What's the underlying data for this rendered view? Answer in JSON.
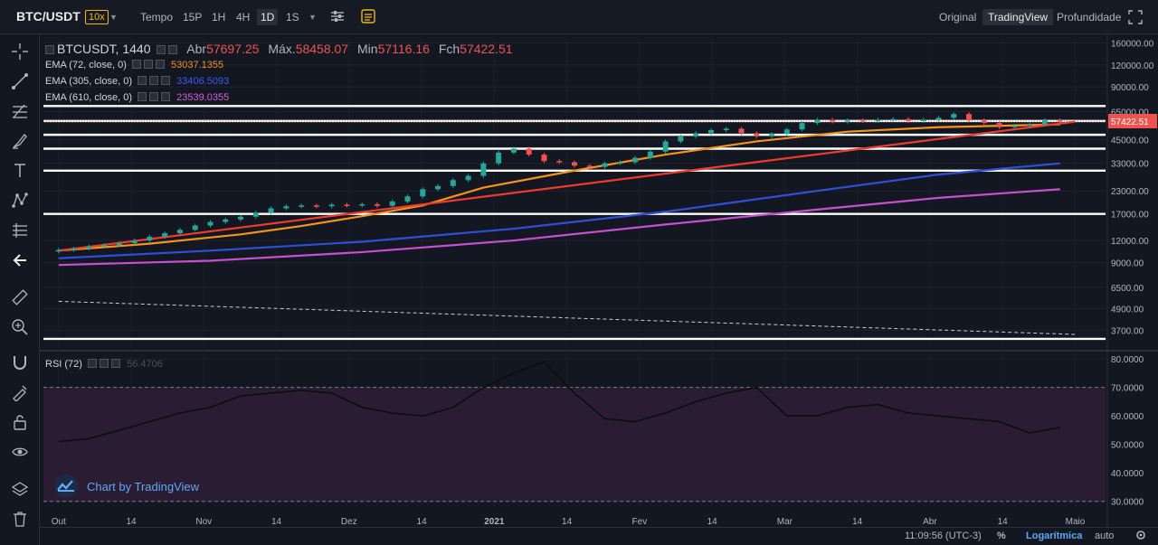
{
  "header": {
    "symbol": "BTC/USDT",
    "leverage": "10x",
    "intervals": [
      "Tempo",
      "15P",
      "1H",
      "4H",
      "1D",
      "1S"
    ],
    "active_interval": "1D",
    "views": [
      "Original",
      "TradingView",
      "Profundidade"
    ],
    "active_view": "TradingView"
  },
  "legend": {
    "symbol": "BTCUSDT, 1440",
    "open_label": "Abr",
    "open": "57697.25",
    "high_label": "Máx.",
    "high": "58458.07",
    "low_label": "Min",
    "low": "57116.16",
    "close_label": "Fch",
    "close": "57422.51",
    "ema1_label": "EMA (72, close, 0)",
    "ema1": "53037.1355",
    "ema2_label": "EMA (305, close, 0)",
    "ema2": "33406.5093",
    "ema3_label": "EMA (610, close, 0)",
    "ema3": "23539.0355",
    "rsi_label": "RSI (72)",
    "rsi": "56.4706"
  },
  "colors": {
    "bg": "#131722",
    "up": "#26a69a",
    "down": "#ef5350",
    "ema1": "#f7931a",
    "ema2": "#2f4fd8",
    "ema3": "#c84fd0",
    "trendline": "#ef3a2e",
    "rsi_band": "#2a1d33",
    "price_badge": "#ef5350"
  },
  "chart_data": [
    {
      "type": "line",
      "title": "BTCUSDT, 1440",
      "scale": "log",
      "ylim": [
        3000,
        175000
      ],
      "ytick_labels": [
        "160000.00",
        "120000.00",
        "90000.00",
        "65000.00",
        "45000.00",
        "33000.00",
        "23000.00",
        "17000.00",
        "12000.00",
        "9000.00",
        "6500.00",
        "4900.00",
        "3700.00"
      ],
      "ytick_values": [
        160000,
        120000,
        90000,
        65000,
        45000,
        33000,
        23000,
        17000,
        12000,
        9000,
        6500,
        4900,
        3700
      ],
      "xtick_labels": [
        "Out",
        "14",
        "Nov",
        "14",
        "Dez",
        "14",
        "2021",
        "14",
        "Fev",
        "14",
        "Mar",
        "14",
        "Abr",
        "14",
        "Maio"
      ],
      "last_price": "57422.51",
      "horizontal_levels": [
        70000,
        57500,
        48000,
        40000,
        30000,
        17000,
        3300
      ],
      "series": [
        {
          "name": "EMA (72, close, 0)",
          "color_key": "ema1",
          "x": [
            0,
            3,
            6,
            8,
            10,
            12,
            14,
            17,
            20,
            23,
            26,
            29,
            33
          ],
          "values": [
            10500,
            11500,
            13000,
            14500,
            16500,
            19000,
            24000,
            30000,
            37000,
            44000,
            50000,
            53000,
            55000
          ]
        },
        {
          "name": "EMA (305, close, 0)",
          "color_key": "ema2",
          "x": [
            0,
            5,
            10,
            15,
            20,
            25,
            29,
            33
          ],
          "values": [
            9500,
            10500,
            11800,
            14000,
            17500,
            23000,
            28500,
            33000
          ]
        },
        {
          "name": "EMA (610, close, 0)",
          "color_key": "ema3",
          "x": [
            0,
            5,
            10,
            15,
            20,
            25,
            29,
            33
          ],
          "values": [
            8700,
            9200,
            10300,
            12000,
            14800,
            18000,
            21000,
            23500
          ]
        },
        {
          "name": "",
          "color_key": "trendline",
          "x": [
            0,
            33.5
          ],
          "values": [
            10500,
            57000
          ]
        },
        {
          "name": "",
          "color_key": "dashed",
          "x": [
            0,
            33.5
          ],
          "values": [
            5400,
            3500
          ]
        }
      ],
      "candles": {
        "x": [
          0,
          0.5,
          1,
          1.5,
          2,
          2.5,
          3,
          3.5,
          4,
          4.5,
          5,
          5.5,
          6,
          6.5,
          7,
          7.5,
          8,
          8.5,
          9,
          9.5,
          10,
          10.5,
          11,
          11.5,
          12,
          12.5,
          13,
          13.5,
          14,
          14.5,
          15,
          15.5,
          16,
          16.5,
          17,
          17.5,
          18,
          18.5,
          19,
          19.5,
          20,
          20.5,
          21,
          21.5,
          22,
          22.5,
          23,
          23.5,
          24,
          24.5,
          25,
          25.5,
          26,
          26.5,
          27,
          27.5,
          28,
          28.5,
          29,
          29.5,
          30,
          30.5,
          31,
          31.5,
          32,
          32.5,
          33
        ],
        "close": [
          10600,
          10800,
          11100,
          11300,
          11600,
          12000,
          12600,
          13200,
          13800,
          14600,
          15300,
          15800,
          16400,
          17300,
          18300,
          18800,
          19000,
          18800,
          19200,
          19000,
          19300,
          18900,
          20000,
          21400,
          23500,
          24500,
          26500,
          28000,
          33000,
          38000,
          40000,
          37000,
          34000,
          33500,
          32000,
          31500,
          33000,
          33500,
          35500,
          38500,
          44000,
          47000,
          49000,
          51000,
          52000,
          49000,
          47000,
          48500,
          51500,
          56000,
          58500,
          57000,
          58000,
          57500,
          58500,
          59000,
          57500,
          58500,
          60000,
          63000,
          58000,
          56000,
          53000,
          54000,
          55000,
          58000,
          57400
        ]
      }
    },
    {
      "type": "line",
      "title": "RSI (72)",
      "ylim": [
        28,
        81
      ],
      "ytick_labels": [
        "80.0000",
        "70.0000",
        "60.0000",
        "50.0000",
        "40.0000",
        "30.0000"
      ],
      "ytick_values": [
        80,
        70,
        60,
        50,
        40,
        30
      ],
      "band": [
        30,
        70
      ],
      "last_value": "56.4706",
      "series": [
        {
          "name": "RSI (72)",
          "x": [
            0,
            1,
            2,
            3,
            4,
            5,
            6,
            7,
            8,
            9,
            10,
            11,
            12,
            13,
            14,
            15,
            16,
            17,
            18,
            19,
            20,
            21,
            22,
            23,
            24,
            25,
            26,
            27,
            28,
            29,
            30,
            31,
            32,
            33
          ],
          "values": [
            51,
            52,
            55,
            58,
            61,
            63,
            67,
            68,
            69,
            68,
            63,
            61,
            60,
            63,
            70,
            75,
            79,
            68,
            59,
            58,
            61,
            65,
            68,
            70,
            60,
            60,
            63,
            64,
            61,
            60,
            59,
            58,
            54,
            56
          ]
        }
      ]
    }
  ],
  "footer": {
    "watermark": "Chart by TradingView",
    "time": "11:09:56 (UTC-3)",
    "percent": "%",
    "log": "Logarítmica",
    "auto": "auto"
  }
}
